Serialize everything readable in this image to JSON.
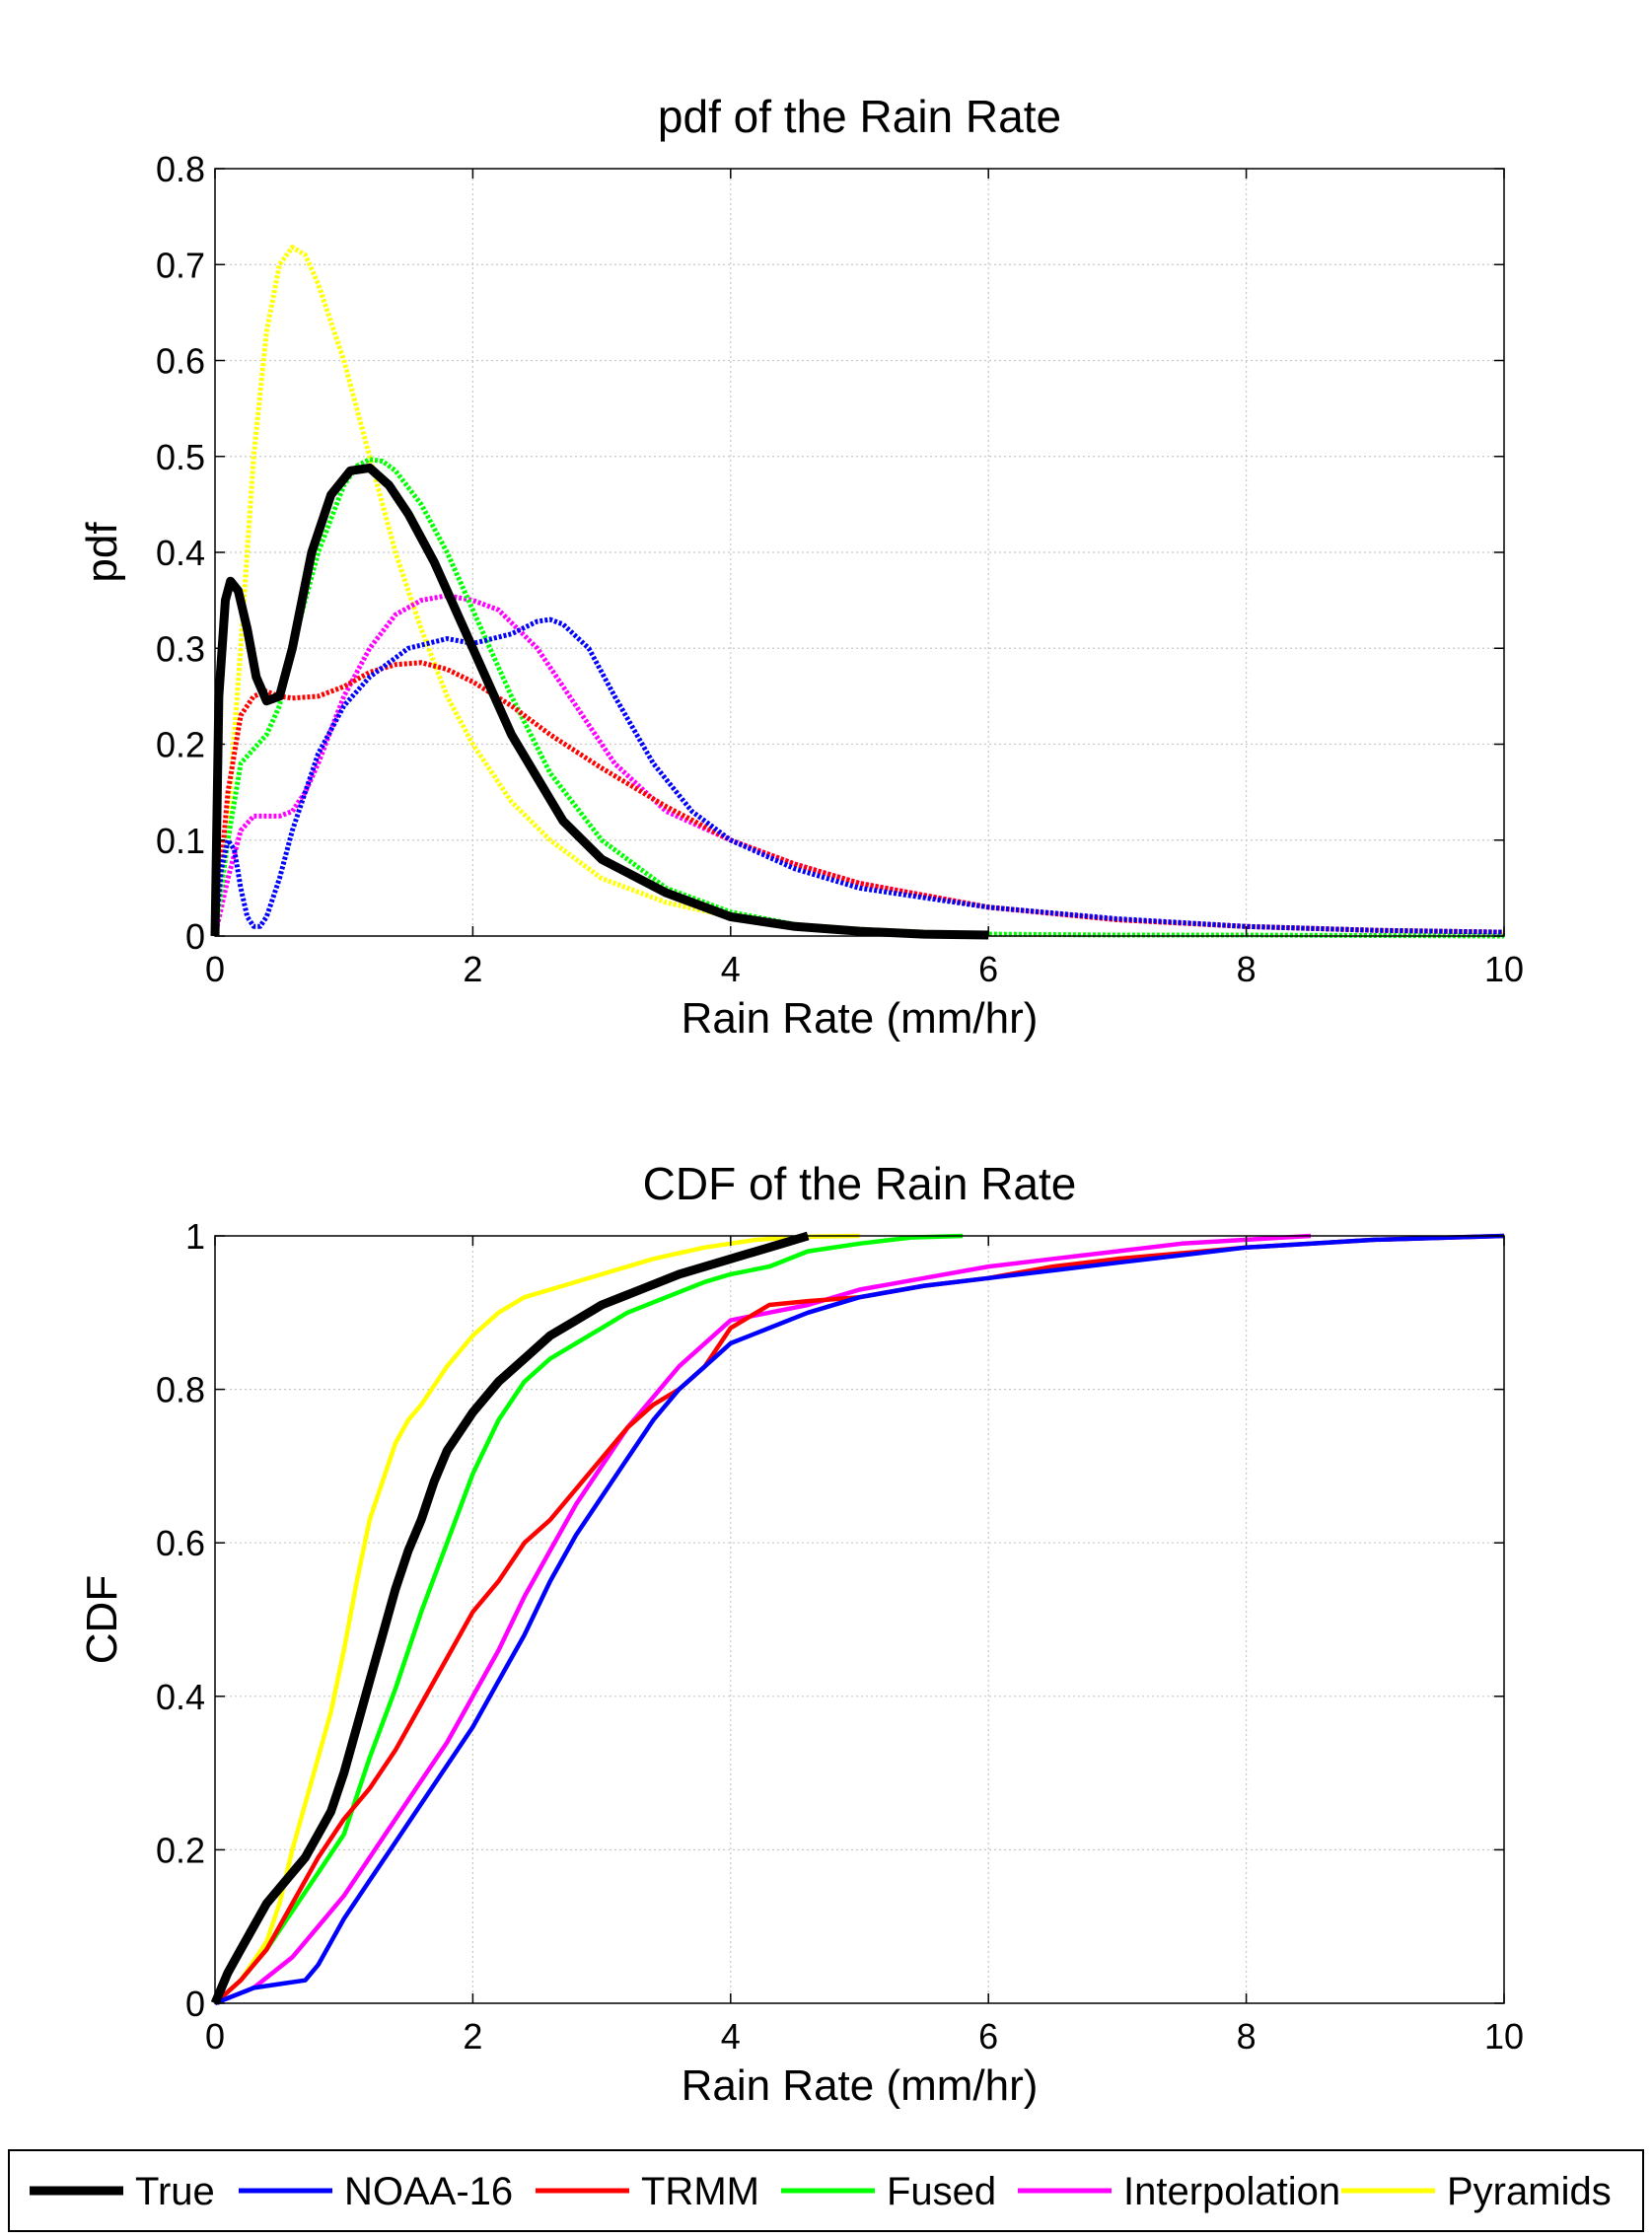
{
  "chart_data": [
    {
      "type": "line",
      "title": "pdf of the Rain Rate",
      "xlabel": "Rain Rate (mm/hr)",
      "ylabel": "pdf",
      "xlim": [
        0,
        10
      ],
      "ylim": [
        0,
        0.8
      ],
      "xticks": [
        0,
        2,
        4,
        6,
        8,
        10
      ],
      "yticks": [
        0,
        0.1,
        0.2,
        0.3,
        0.4,
        0.5,
        0.6,
        0.7,
        0.8
      ],
      "xtick_labels": [
        "0",
        "2",
        "4",
        "6",
        "8",
        "10"
      ],
      "ytick_labels": [
        "0",
        "0.1",
        "0.2",
        "0.3",
        "0.4",
        "0.5",
        "0.6",
        "0.7",
        "0.8"
      ],
      "grid": true,
      "series": [
        {
          "name": "True",
          "color": "#000000",
          "style": "solid",
          "x": [
            0,
            0.03,
            0.08,
            0.12,
            0.18,
            0.25,
            0.32,
            0.4,
            0.5,
            0.6,
            0.75,
            0.9,
            1.05,
            1.2,
            1.35,
            1.5,
            1.7,
            2.0,
            2.3,
            2.7,
            3.0,
            3.5,
            4.0,
            4.5,
            5.0,
            5.5,
            6.0
          ],
          "y": [
            0,
            0.25,
            0.35,
            0.37,
            0.36,
            0.32,
            0.27,
            0.245,
            0.25,
            0.3,
            0.4,
            0.46,
            0.485,
            0.488,
            0.47,
            0.44,
            0.39,
            0.3,
            0.21,
            0.12,
            0.08,
            0.045,
            0.02,
            0.01,
            0.005,
            0.002,
            0.001
          ]
        },
        {
          "name": "NOAA-16",
          "color": "#0000ff",
          "style": "dotted",
          "x": [
            0,
            0.05,
            0.1,
            0.15,
            0.2,
            0.25,
            0.3,
            0.35,
            0.4,
            0.5,
            0.6,
            0.8,
            1.0,
            1.2,
            1.5,
            1.8,
            2.0,
            2.3,
            2.5,
            2.6,
            2.7,
            2.9,
            3.1,
            3.4,
            3.7,
            4.0,
            4.5,
            5.0,
            6.0,
            7.0,
            8.0,
            9.0,
            10.0
          ],
          "y": [
            0,
            0.07,
            0.1,
            0.09,
            0.05,
            0.02,
            0.01,
            0.01,
            0.02,
            0.06,
            0.11,
            0.19,
            0.24,
            0.27,
            0.3,
            0.31,
            0.305,
            0.315,
            0.328,
            0.33,
            0.325,
            0.3,
            0.25,
            0.18,
            0.13,
            0.1,
            0.07,
            0.05,
            0.03,
            0.018,
            0.01,
            0.006,
            0.004
          ]
        },
        {
          "name": "TRMM",
          "color": "#ff0000",
          "style": "dotted",
          "x": [
            0,
            0.1,
            0.2,
            0.3,
            0.4,
            0.5,
            0.6,
            0.8,
            1.0,
            1.2,
            1.4,
            1.6,
            1.8,
            2.0,
            2.3,
            2.6,
            3.0,
            3.5,
            4.0,
            4.5,
            5.0,
            6.0,
            7.0,
            8.0,
            9.0,
            10.0
          ],
          "y": [
            0,
            0.15,
            0.23,
            0.25,
            0.255,
            0.25,
            0.248,
            0.25,
            0.26,
            0.275,
            0.283,
            0.285,
            0.278,
            0.265,
            0.24,
            0.21,
            0.175,
            0.135,
            0.1,
            0.075,
            0.055,
            0.03,
            0.017,
            0.01,
            0.006,
            0.004
          ]
        },
        {
          "name": "Fused",
          "color": "#00ff00",
          "style": "dotted",
          "x": [
            0,
            0.1,
            0.2,
            0.3,
            0.4,
            0.5,
            0.6,
            0.8,
            1.0,
            1.1,
            1.2,
            1.3,
            1.4,
            1.6,
            1.8,
            2.0,
            2.3,
            2.6,
            3.0,
            3.5,
            4.0,
            4.5,
            5.0,
            5.5,
            6.0,
            7.0,
            8.0,
            10.0
          ],
          "y": [
            0,
            0.1,
            0.18,
            0.195,
            0.21,
            0.24,
            0.3,
            0.4,
            0.47,
            0.49,
            0.497,
            0.495,
            0.485,
            0.45,
            0.4,
            0.34,
            0.25,
            0.17,
            0.1,
            0.05,
            0.025,
            0.012,
            0.006,
            0.003,
            0.002,
            0.001,
            0.001,
            0
          ]
        },
        {
          "name": "Interpolation",
          "color": "#ff00ff",
          "style": "dotted",
          "x": [
            0,
            0.1,
            0.2,
            0.3,
            0.4,
            0.5,
            0.6,
            0.7,
            0.8,
            1.0,
            1.2,
            1.4,
            1.6,
            1.8,
            2.0,
            2.2,
            2.5,
            2.8,
            3.1,
            3.5,
            4.0,
            4.5,
            5.0,
            6.0,
            7.0,
            8.0,
            9.0
          ],
          "y": [
            0,
            0.06,
            0.11,
            0.125,
            0.125,
            0.125,
            0.13,
            0.15,
            0.18,
            0.25,
            0.3,
            0.335,
            0.35,
            0.355,
            0.35,
            0.34,
            0.3,
            0.24,
            0.18,
            0.13,
            0.1,
            0.075,
            0.055,
            0.03,
            0.017,
            0.01,
            0.006
          ]
        },
        {
          "name": "Pyramids",
          "color": "#ffff00",
          "style": "dotted",
          "x": [
            0,
            0.1,
            0.2,
            0.3,
            0.4,
            0.5,
            0.6,
            0.7,
            0.8,
            0.9,
            1.0,
            1.2,
            1.4,
            1.6,
            1.8,
            2.0,
            2.3,
            2.6,
            3.0,
            3.5,
            4.0,
            4.5,
            5.0,
            5.5,
            6.0
          ],
          "y": [
            0,
            0.12,
            0.3,
            0.5,
            0.63,
            0.7,
            0.718,
            0.71,
            0.68,
            0.64,
            0.6,
            0.5,
            0.4,
            0.32,
            0.25,
            0.2,
            0.14,
            0.1,
            0.06,
            0.035,
            0.02,
            0.012,
            0.007,
            0.004,
            0.002
          ]
        }
      ]
    },
    {
      "type": "line",
      "title": "CDF of the Rain Rate",
      "xlabel": "Rain Rate (mm/hr)",
      "ylabel": "CDF",
      "xlim": [
        0,
        10
      ],
      "ylim": [
        0,
        1
      ],
      "xticks": [
        0,
        2,
        4,
        6,
        8,
        10
      ],
      "yticks": [
        0,
        0.2,
        0.4,
        0.6,
        0.8,
        1
      ],
      "xtick_labels": [
        "0",
        "2",
        "4",
        "6",
        "8",
        "10"
      ],
      "ytick_labels": [
        "0",
        "0.2",
        "0.4",
        "0.6",
        "0.8",
        "1"
      ],
      "grid": true,
      "series": [
        {
          "name": "True",
          "color": "#000000",
          "style": "solid",
          "x": [
            0,
            0.1,
            0.2,
            0.3,
            0.4,
            0.5,
            0.6,
            0.7,
            0.8,
            0.9,
            1.0,
            1.1,
            1.2,
            1.3,
            1.4,
            1.5,
            1.6,
            1.7,
            1.8,
            2.0,
            2.2,
            2.4,
            2.6,
            2.8,
            3.0,
            3.3,
            3.6,
            4.0,
            4.4,
            4.6
          ],
          "y": [
            0,
            0.04,
            0.07,
            0.1,
            0.13,
            0.15,
            0.17,
            0.19,
            0.22,
            0.25,
            0.3,
            0.36,
            0.42,
            0.48,
            0.54,
            0.59,
            0.63,
            0.68,
            0.72,
            0.77,
            0.81,
            0.84,
            0.87,
            0.89,
            0.91,
            0.93,
            0.95,
            0.97,
            0.99,
            1.0
          ]
        },
        {
          "name": "NOAA-16",
          "color": "#0000ff",
          "style": "solid",
          "x": [
            0,
            0.3,
            0.5,
            0.7,
            0.8,
            0.9,
            1.0,
            1.2,
            1.4,
            1.6,
            1.8,
            2.0,
            2.2,
            2.4,
            2.6,
            2.8,
            3.0,
            3.2,
            3.4,
            3.6,
            3.8,
            4.0,
            4.3,
            4.6,
            5.0,
            5.5,
            6.0,
            6.5,
            7.0,
            7.5,
            8.0,
            9.0,
            10.0
          ],
          "y": [
            0,
            0.02,
            0.025,
            0.03,
            0.05,
            0.08,
            0.11,
            0.16,
            0.21,
            0.26,
            0.31,
            0.36,
            0.42,
            0.48,
            0.55,
            0.61,
            0.66,
            0.71,
            0.76,
            0.8,
            0.83,
            0.86,
            0.88,
            0.9,
            0.92,
            0.935,
            0.945,
            0.955,
            0.965,
            0.975,
            0.985,
            0.995,
            1.0
          ]
        },
        {
          "name": "TRMM",
          "color": "#ff0000",
          "style": "solid",
          "x": [
            0,
            0.2,
            0.4,
            0.6,
            0.8,
            1.0,
            1.2,
            1.4,
            1.6,
            1.8,
            2.0,
            2.2,
            2.4,
            2.6,
            2.8,
            3.0,
            3.2,
            3.4,
            3.6,
            3.8,
            4.0,
            4.3,
            4.6,
            5.0,
            5.5,
            6.0,
            6.5,
            7.0,
            8.0,
            9.0,
            10.0
          ],
          "y": [
            0,
            0.03,
            0.07,
            0.13,
            0.19,
            0.24,
            0.28,
            0.33,
            0.39,
            0.45,
            0.51,
            0.55,
            0.6,
            0.63,
            0.67,
            0.71,
            0.75,
            0.78,
            0.8,
            0.83,
            0.88,
            0.91,
            0.915,
            0.92,
            0.935,
            0.945,
            0.96,
            0.97,
            0.985,
            0.995,
            1.0
          ]
        },
        {
          "name": "Fused",
          "color": "#00ff00",
          "style": "solid",
          "x": [
            0,
            0.2,
            0.4,
            0.6,
            0.8,
            1.0,
            1.2,
            1.4,
            1.6,
            1.8,
            2.0,
            2.2,
            2.4,
            2.6,
            2.8,
            3.0,
            3.2,
            3.5,
            3.8,
            4.0,
            4.3,
            4.6,
            5.0,
            5.4,
            5.8
          ],
          "y": [
            0,
            0.03,
            0.07,
            0.12,
            0.17,
            0.22,
            0.32,
            0.41,
            0.51,
            0.6,
            0.69,
            0.76,
            0.81,
            0.84,
            0.86,
            0.88,
            0.9,
            0.92,
            0.94,
            0.95,
            0.96,
            0.98,
            0.99,
            0.998,
            1.0
          ]
        },
        {
          "name": "Interpolation",
          "color": "#ff00ff",
          "style": "solid",
          "x": [
            0,
            0.3,
            0.6,
            0.8,
            1.0,
            1.2,
            1.4,
            1.6,
            1.8,
            2.0,
            2.2,
            2.4,
            2.6,
            2.8,
            3.0,
            3.2,
            3.4,
            3.6,
            3.8,
            4.0,
            4.3,
            4.6,
            5.0,
            5.5,
            6.0,
            6.5,
            7.0,
            7.5,
            8.0,
            8.5
          ],
          "y": [
            0,
            0.02,
            0.06,
            0.1,
            0.14,
            0.19,
            0.24,
            0.29,
            0.34,
            0.4,
            0.46,
            0.53,
            0.59,
            0.65,
            0.7,
            0.75,
            0.79,
            0.83,
            0.86,
            0.89,
            0.9,
            0.91,
            0.93,
            0.945,
            0.96,
            0.97,
            0.98,
            0.99,
            0.995,
            1.0
          ]
        },
        {
          "name": "Pyramids",
          "color": "#ffff00",
          "style": "solid",
          "x": [
            0,
            0.2,
            0.4,
            0.5,
            0.6,
            0.7,
            0.8,
            0.9,
            1.0,
            1.1,
            1.2,
            1.3,
            1.4,
            1.5,
            1.6,
            1.8,
            2.0,
            2.2,
            2.4,
            2.6,
            3.0,
            3.4,
            3.8,
            4.2,
            4.6,
            5.0
          ],
          "y": [
            0,
            0.03,
            0.08,
            0.13,
            0.2,
            0.26,
            0.32,
            0.38,
            0.46,
            0.55,
            0.63,
            0.68,
            0.73,
            0.76,
            0.78,
            0.83,
            0.87,
            0.9,
            0.92,
            0.93,
            0.95,
            0.97,
            0.985,
            0.995,
            0.999,
            1.0
          ]
        }
      ]
    }
  ],
  "legend": {
    "position": "bottom",
    "entries": [
      {
        "label": "True",
        "color": "#000000"
      },
      {
        "label": "NOAA-16",
        "color": "#0000ff"
      },
      {
        "label": "TRMM",
        "color": "#ff0000"
      },
      {
        "label": "Fused",
        "color": "#00ff00"
      },
      {
        "label": "Interpolation",
        "color": "#ff00ff"
      },
      {
        "label": "Pyramids",
        "color": "#ffff00"
      }
    ]
  }
}
